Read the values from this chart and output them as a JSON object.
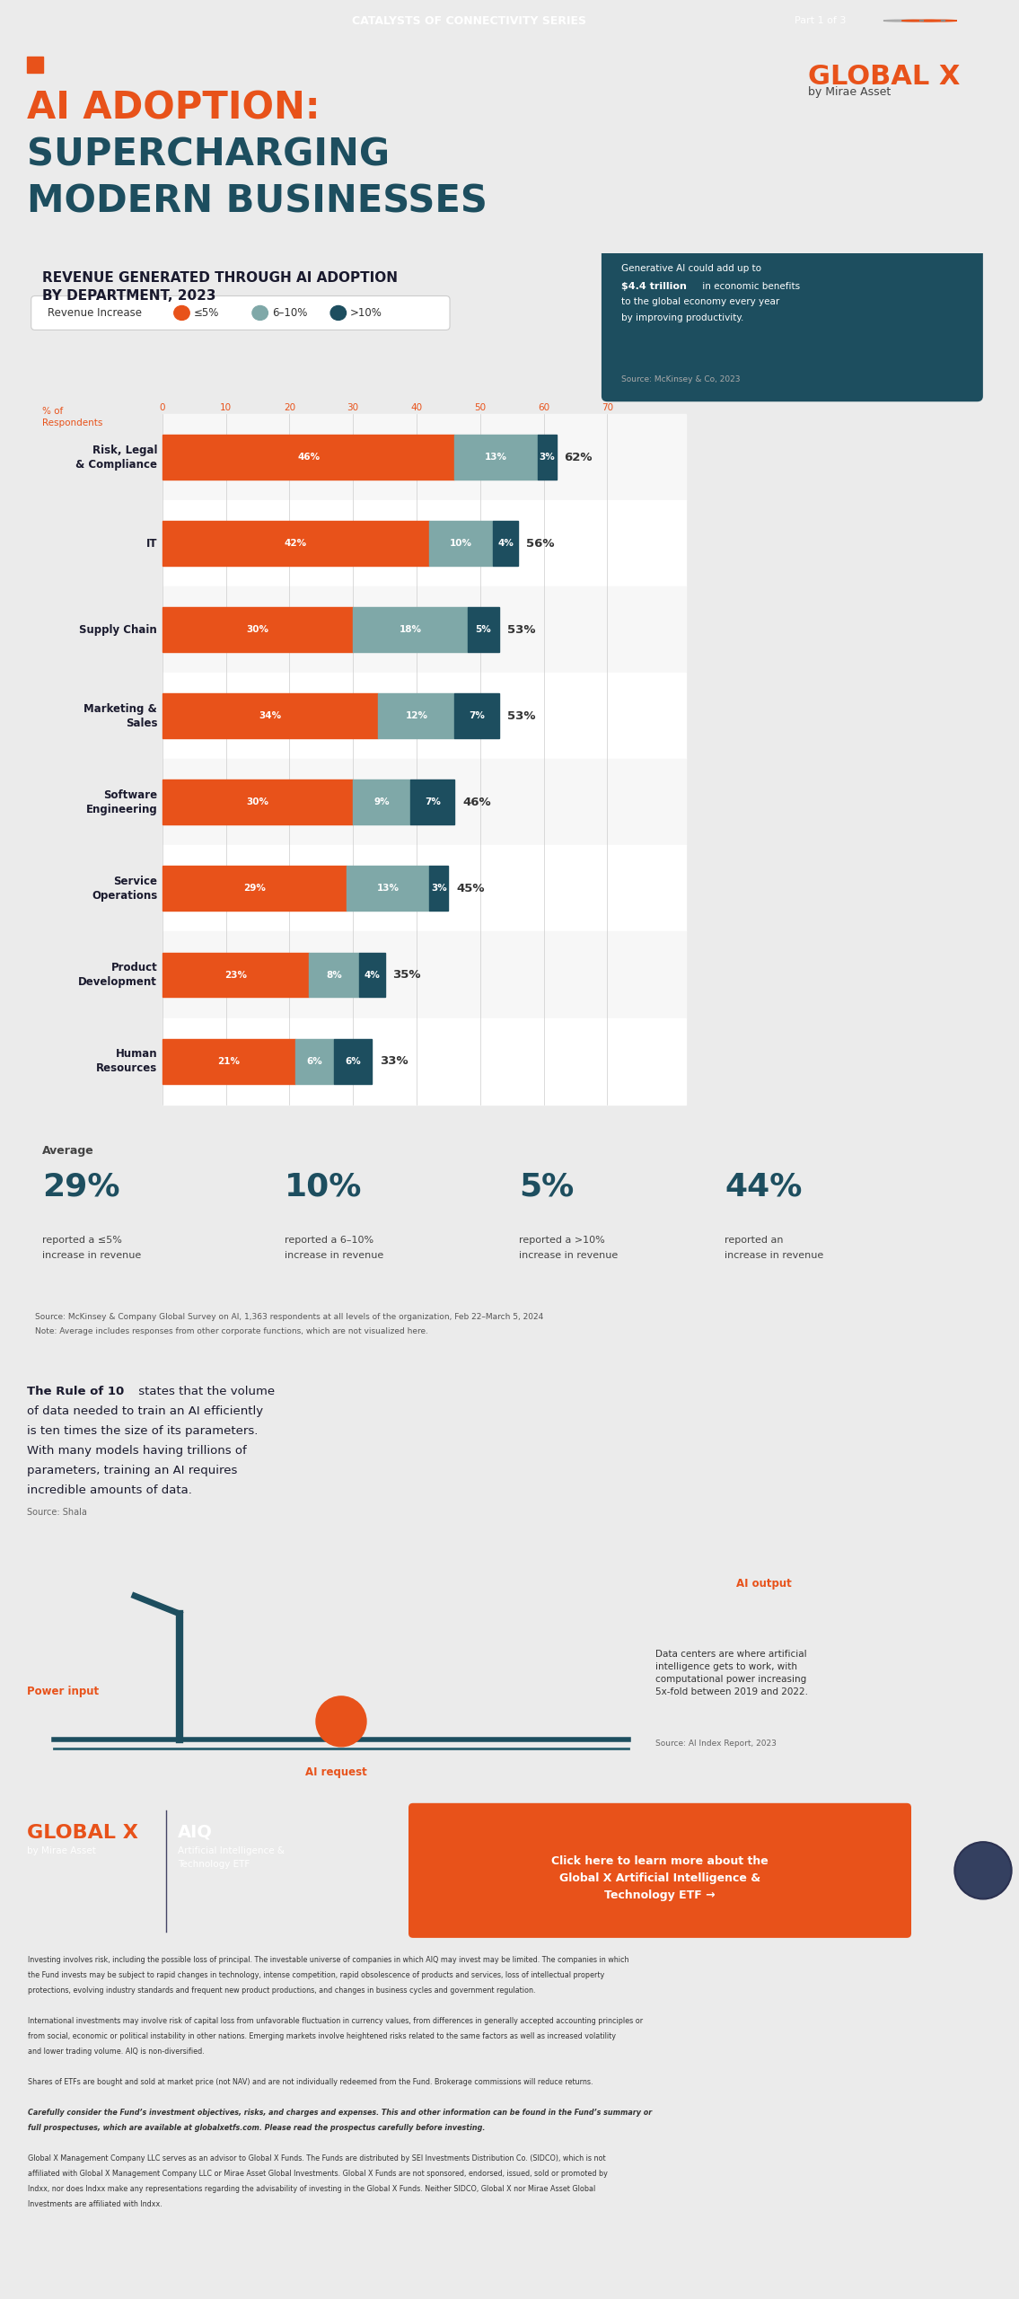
{
  "header_text": "CATALYSTS OF CONNECTIVITY SERIES",
  "part_text": "Part 1 of 3",
  "title_line1": "AI ADOPTION:",
  "title_line2": "SUPERCHARGING",
  "title_line3": "MODERN BUSINESSES",
  "chart_title_line1": "REVENUE GENERATED THROUGH AI ADOPTION",
  "chart_title_line2": "BY DEPARTMENT, 2023",
  "legend_label": "Revenue Increase",
  "legend_items": [
    "≤5%",
    "6–10%",
    ">10%"
  ],
  "legend_colors": [
    "#E8521A",
    "#7FA8A8",
    "#1D4E5F"
  ],
  "categories": [
    "Risk, Legal\n& Compliance",
    "IT",
    "Supply Chain",
    "Marketing &\nSales",
    "Software\nEngineering",
    "Service\nOperations",
    "Product\nDevelopment",
    "Human\nResources"
  ],
  "bar_data": [
    [
      46,
      13,
      3
    ],
    [
      42,
      10,
      4
    ],
    [
      30,
      18,
      5
    ],
    [
      34,
      12,
      7
    ],
    [
      30,
      9,
      7
    ],
    [
      29,
      13,
      3
    ],
    [
      23,
      8,
      4
    ],
    [
      21,
      6,
      6
    ]
  ],
  "totals": [
    "62%",
    "56%",
    "53%",
    "53%",
    "46%",
    "45%",
    "35%",
    "33%"
  ],
  "bar_colors": [
    "#E8521A",
    "#7FA8A8",
    "#1D4E5F"
  ],
  "bg_color": "#EBEBEB",
  "card_bg": "#FFFFFF",
  "header_bg": "#E8521A",
  "dark_card_bg": "#1D4E5F",
  "bottom_stats": [
    {
      "pct": "29%",
      "label": "reported a ≤5%",
      "label2": "increase in revenue"
    },
    {
      "pct": "10%",
      "label": "reported a 6–10%",
      "label2": "increase in revenue"
    },
    {
      "pct": "5%",
      "label": "reported a >10%",
      "label2": "increase in revenue"
    },
    {
      "pct": "44%",
      "label": "reported an",
      "label2": "increase in revenue"
    }
  ],
  "average_label": "Average",
  "source_text": "Source: McKinsey & Company Global Survey on AI, 1,363 respondents at all levels of the organization, Feb 22–March 5, 2024",
  "source_text2": "Note: Average includes responses from other corporate functions, which are not visualized here.",
  "rule_of_10_title": "The Rule of 10",
  "rule_of_10_text": " states that the volume\nof data needed to train an AI efficiently\nis ten times the size of its parameters.\nWith many models having trillions of\nparameters, training an AI requires\nincredible amounts of data.",
  "rule_of_10_source": "Source: Shala",
  "callout_text1": "Generative AI could add up to",
  "callout_bold": "$4.4 trillion",
  "callout_text2": " in economic benefits",
  "callout_text3": "to the global economy every year",
  "callout_text4": "by improving productivity.",
  "callout_source": "Source: McKinsey & Co, 2023",
  "footer_logo": "GLOBAL X",
  "footer_byline": "by Mirae Asset",
  "footer_aiq": "AIQ",
  "footer_aiq_sub": "Artificial Intelligence &\nTechnology ETF",
  "footer_cta": "Click here to learn more about the\nGlobal X Artificial Intelligence &\nTechnology ETF →",
  "footer_bg": "#1B1F3B",
  "disclaimer1": "Investing involves risk, including the possible loss of principal. The investable universe of companies in which AIQ may invest may be limited. The companies in which",
  "disclaimer2": "the Fund invests may be subject to rapid changes in technology, intense competition, rapid obsolescence of products and services, loss of intellectual property",
  "disclaimer3": "protections, evolving industry standards and frequent new product productions, and changes in business cycles and government regulation.",
  "disclaimer4": "",
  "disclaimer5": "International investments may involve risk of capital loss from unfavorable fluctuation in currency values, from differences in generally accepted accounting principles or",
  "disclaimer6": "from social, economic or political instability in other nations. Emerging markets involve heightened risks related to the same factors as well as increased volatility",
  "disclaimer7": "and lower trading volume. AIQ is non-diversified.",
  "disclaimer8": "",
  "disclaimer9": "Shares of ETFs are bought and sold at market price (not NAV) and are not individually redeemed from the Fund. Brokerage commissions will reduce returns.",
  "disclaimer10": "",
  "disclaimer_bold": "Carefully consider the Fund’s investment objectives, risks, and charges and expenses. This and other information can be found in the Fund’s summary or",
  "disclaimer_bold2": "full prospectuses, which are available at globalxetfs.com. Please read the prospectus carefully before investing.",
  "disclaimer11": "",
  "disclaimer12": "Global X Management Company LLC serves as an advisor to Global X Funds. The Funds are distributed by SEI Investments Distribution Co. (SIDCO), which is not",
  "disclaimer13": "affiliated with Global X Management Company LLC or Mirae Asset Global Investments. Global X Funds are not sponsored, endorsed, issued, sold or promoted by",
  "disclaimer14": "Indxx, nor does Indxx make any representations regarding the advisability of investing in the Global X Funds. Neither SIDCO, Global X nor Mirae Asset Global",
  "disclaimer15": "Investments are affiliated with Indxx.",
  "orange_color": "#E8521A",
  "teal_dark": "#1D4E5F",
  "teal_light": "#7FA8A8",
  "power_input_label": "Power input",
  "ai_output_label": "AI output",
  "ai_request_label": "AI request",
  "data_centers_text": "Data centers are where artificial\nintelligence gets to work, with\ncomputational power increasing\n5x-fold between 2019 and 2022.",
  "data_centers_source": "Source: AI Index Report, 2023"
}
